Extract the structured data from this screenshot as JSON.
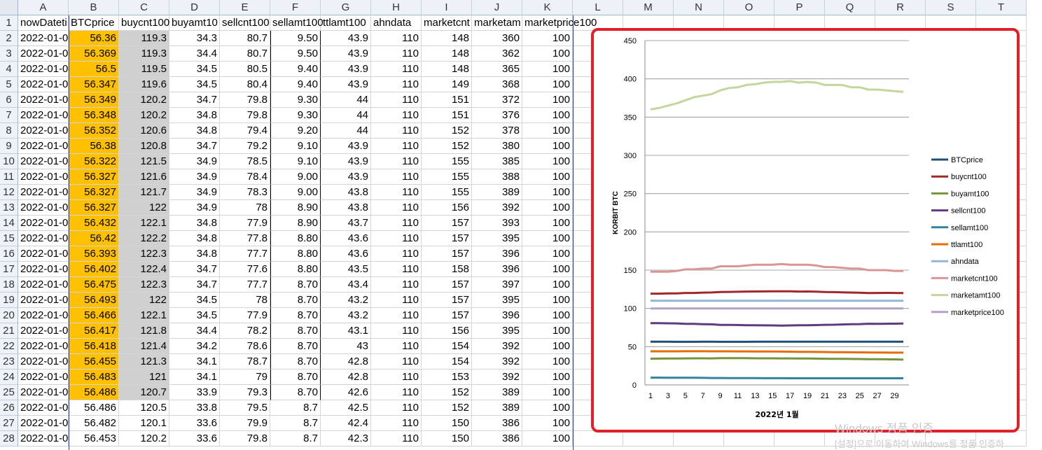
{
  "columns": [
    "A",
    "B",
    "C",
    "D",
    "E",
    "F",
    "G",
    "H",
    "I",
    "J",
    "K",
    "L",
    "M",
    "N",
    "O",
    "P",
    "Q",
    "R",
    "S",
    "T"
  ],
  "headers": [
    "nowDateti",
    "BTCprice",
    "buycnt100",
    "buyamt10",
    "sellcnt100",
    "sellamt100",
    "ttlamt100",
    "ahndata",
    "marketcnt",
    "marketam",
    "marketprice100"
  ],
  "rows": [
    [
      "2022-01-0",
      "56.36",
      "119.3",
      "34.3",
      "80.7",
      "9.50",
      "43.9",
      "110",
      "148",
      "360",
      "100"
    ],
    [
      "2022-01-0",
      "56.369",
      "119.3",
      "34.4",
      "80.7",
      "9.50",
      "43.9",
      "110",
      "148",
      "362",
      "100"
    ],
    [
      "2022-01-0",
      "56.5",
      "119.5",
      "34.5",
      "80.5",
      "9.40",
      "43.9",
      "110",
      "148",
      "365",
      "100"
    ],
    [
      "2022-01-0",
      "56.347",
      "119.6",
      "34.5",
      "80.4",
      "9.40",
      "43.9",
      "110",
      "149",
      "368",
      "100"
    ],
    [
      "2022-01-0",
      "56.349",
      "120.2",
      "34.7",
      "79.8",
      "9.30",
      "44",
      "110",
      "151",
      "372",
      "100"
    ],
    [
      "2022-01-0",
      "56.348",
      "120.2",
      "34.8",
      "79.8",
      "9.30",
      "44",
      "110",
      "151",
      "376",
      "100"
    ],
    [
      "2022-01-0",
      "56.352",
      "120.6",
      "34.8",
      "79.4",
      "9.20",
      "44",
      "110",
      "152",
      "378",
      "100"
    ],
    [
      "2022-01-0",
      "56.38",
      "120.8",
      "34.7",
      "79.2",
      "9.10",
      "43.9",
      "110",
      "152",
      "380",
      "100"
    ],
    [
      "2022-01-0",
      "56.322",
      "121.5",
      "34.9",
      "78.5",
      "9.10",
      "43.9",
      "110",
      "155",
      "385",
      "100"
    ],
    [
      "2022-01-0",
      "56.327",
      "121.6",
      "34.9",
      "78.4",
      "9.00",
      "43.9",
      "110",
      "155",
      "388",
      "100"
    ],
    [
      "2022-01-0",
      "56.327",
      "121.7",
      "34.9",
      "78.3",
      "9.00",
      "43.8",
      "110",
      "155",
      "389",
      "100"
    ],
    [
      "2022-01-0",
      "56.327",
      "122",
      "34.9",
      "78",
      "8.90",
      "43.8",
      "110",
      "156",
      "392",
      "100"
    ],
    [
      "2022-01-0",
      "56.432",
      "122.1",
      "34.8",
      "77.9",
      "8.90",
      "43.7",
      "110",
      "157",
      "393",
      "100"
    ],
    [
      "2022-01-0",
      "56.42",
      "122.2",
      "34.8",
      "77.8",
      "8.80",
      "43.6",
      "110",
      "157",
      "395",
      "100"
    ],
    [
      "2022-01-0",
      "56.393",
      "122.3",
      "34.8",
      "77.7",
      "8.80",
      "43.6",
      "110",
      "157",
      "396",
      "100"
    ],
    [
      "2022-01-0",
      "56.402",
      "122.4",
      "34.7",
      "77.6",
      "8.80",
      "43.5",
      "110",
      "158",
      "396",
      "100"
    ],
    [
      "2022-01-0",
      "56.475",
      "122.3",
      "34.7",
      "77.7",
      "8.70",
      "43.4",
      "110",
      "157",
      "397",
      "100"
    ],
    [
      "2022-01-0",
      "56.493",
      "122",
      "34.5",
      "78",
      "8.70",
      "43.2",
      "110",
      "157",
      "395",
      "100"
    ],
    [
      "2022-01-0",
      "56.466",
      "122.1",
      "34.5",
      "77.9",
      "8.70",
      "43.2",
      "110",
      "157",
      "396",
      "100"
    ],
    [
      "2022-01-0",
      "56.417",
      "121.8",
      "34.4",
      "78.2",
      "8.70",
      "43.1",
      "110",
      "156",
      "395",
      "100"
    ],
    [
      "2022-01-0",
      "56.418",
      "121.4",
      "34.2",
      "78.6",
      "8.70",
      "43",
      "110",
      "154",
      "392",
      "100"
    ],
    [
      "2022-01-0",
      "56.455",
      "121.3",
      "34.1",
      "78.7",
      "8.70",
      "42.8",
      "110",
      "154",
      "392",
      "100"
    ],
    [
      "2022-01-0",
      "56.483",
      "121",
      "34.1",
      "79",
      "8.70",
      "42.8",
      "110",
      "153",
      "392",
      "100"
    ],
    [
      "2022-01-0",
      "56.486",
      "120.7",
      "33.9",
      "79.3",
      "8.70",
      "42.6",
      "110",
      "152",
      "389",
      "100"
    ],
    [
      "2022-01-0",
      "56.486",
      "120.5",
      "33.8",
      "79.5",
      "8.7",
      "42.5",
      "110",
      "152",
      "389",
      "100"
    ],
    [
      "2022-01-0",
      "56.482",
      "120.1",
      "33.6",
      "79.9",
      "8.7",
      "42.4",
      "110",
      "150",
      "386",
      "100"
    ],
    [
      "2022-01-0",
      "56.453",
      "120.2",
      "33.6",
      "79.8",
      "8.7",
      "42.3",
      "110",
      "150",
      "386",
      "100"
    ]
  ],
  "colors": {
    "highlight_b": "#ffc000",
    "highlight_c": "#d0d0d0",
    "chart_border": "#e3202a"
  },
  "chart_data": {
    "type": "line",
    "title": "",
    "xlabel": "2022년 1월",
    "ylabel": "KORBIT BTC",
    "ylim": [
      0,
      450
    ],
    "yticks": [
      0,
      50,
      100,
      150,
      200,
      250,
      300,
      350,
      400,
      450
    ],
    "x": [
      1,
      2,
      3,
      4,
      5,
      6,
      7,
      8,
      9,
      10,
      11,
      12,
      13,
      14,
      15,
      16,
      17,
      18,
      19,
      20,
      21,
      22,
      23,
      24,
      25,
      26,
      27,
      28,
      29,
      30
    ],
    "xticks": [
      1,
      3,
      5,
      7,
      9,
      11,
      13,
      15,
      17,
      19,
      21,
      23,
      25,
      27,
      29
    ],
    "grid": true,
    "legend_position": "right",
    "series": [
      {
        "name": "BTCprice",
        "color": "#1f4e79",
        "values": [
          56.4,
          56.4,
          56.5,
          56.3,
          56.3,
          56.3,
          56.4,
          56.4,
          56.3,
          56.3,
          56.3,
          56.3,
          56.4,
          56.4,
          56.4,
          56.4,
          56.5,
          56.5,
          56.5,
          56.4,
          56.4,
          56.5,
          56.5,
          56.5,
          56.5,
          56.5,
          56.5,
          56.5,
          56.5,
          56.5
        ]
      },
      {
        "name": "buycnt100",
        "color": "#a0282c",
        "values": [
          119.3,
          119.3,
          119.5,
          119.6,
          120.2,
          120.2,
          120.6,
          120.8,
          121.5,
          121.6,
          121.7,
          122,
          122.1,
          122.2,
          122.3,
          122.4,
          122.3,
          122,
          122.1,
          121.8,
          121.4,
          121.3,
          121,
          120.7,
          120.5,
          120.1,
          120.2,
          120.3,
          120.2,
          120
        ]
      },
      {
        "name": "buyamt100",
        "color": "#77933c",
        "values": [
          34.3,
          34.4,
          34.5,
          34.5,
          34.7,
          34.8,
          34.8,
          34.7,
          34.9,
          34.9,
          34.9,
          34.9,
          34.8,
          34.8,
          34.8,
          34.7,
          34.7,
          34.5,
          34.5,
          34.4,
          34.2,
          34.1,
          34.1,
          33.9,
          33.8,
          33.6,
          33.6,
          33.5,
          33.4,
          33
        ]
      },
      {
        "name": "sellcnt100",
        "color": "#5f3a7f",
        "values": [
          80.7,
          80.7,
          80.5,
          80.4,
          79.8,
          79.8,
          79.4,
          79.2,
          78.5,
          78.4,
          78.3,
          78,
          77.9,
          77.8,
          77.7,
          77.6,
          77.7,
          78,
          77.9,
          78.2,
          78.6,
          78.7,
          79,
          79.3,
          79.5,
          79.9,
          79.8,
          79.9,
          80,
          80.3
        ]
      },
      {
        "name": "sellamt100",
        "color": "#31849b",
        "values": [
          9.5,
          9.5,
          9.4,
          9.4,
          9.3,
          9.3,
          9.2,
          9.1,
          9.1,
          9,
          9,
          8.9,
          8.9,
          8.8,
          8.8,
          8.8,
          8.7,
          8.7,
          8.7,
          8.7,
          8.7,
          8.7,
          8.7,
          8.7,
          8.7,
          8.7,
          8.7,
          8.7,
          8.7,
          8.7
        ]
      },
      {
        "name": "ttlamt100",
        "color": "#e46c0a",
        "values": [
          43.9,
          43.9,
          43.9,
          43.9,
          44,
          44,
          44,
          43.9,
          43.9,
          43.9,
          43.8,
          43.8,
          43.7,
          43.6,
          43.6,
          43.5,
          43.4,
          43.2,
          43.2,
          43.1,
          43,
          42.8,
          42.8,
          42.6,
          42.5,
          42.4,
          42.3,
          42.3,
          42.2,
          42.2
        ]
      },
      {
        "name": "ahndata",
        "color": "#95b3d7",
        "values": [
          110,
          110,
          110,
          110,
          110,
          110,
          110,
          110,
          110,
          110,
          110,
          110,
          110,
          110,
          110,
          110,
          110,
          110,
          110,
          110,
          110,
          110,
          110,
          110,
          110,
          110,
          110,
          110,
          110,
          110
        ]
      },
      {
        "name": "marketcnt100",
        "color": "#d99694",
        "values": [
          148,
          148,
          148,
          149,
          151,
          151,
          152,
          152,
          155,
          155,
          155,
          156,
          157,
          157,
          157,
          158,
          157,
          157,
          157,
          156,
          154,
          154,
          153,
          152,
          152,
          150,
          150,
          150,
          149,
          149
        ]
      },
      {
        "name": "marketamt100",
        "color": "#c3d69b",
        "values": [
          360,
          362,
          365,
          368,
          372,
          376,
          378,
          380,
          385,
          388,
          389,
          392,
          393,
          395,
          396,
          396,
          397,
          395,
          396,
          395,
          392,
          392,
          392,
          389,
          389,
          386,
          386,
          385,
          384,
          383
        ]
      },
      {
        "name": "marketprice100",
        "color": "#b3a2c7",
        "values": [
          100,
          100,
          100,
          100,
          100,
          100,
          100,
          100,
          100,
          100,
          100,
          100,
          100,
          100,
          100,
          100,
          100,
          100,
          100,
          100,
          100,
          100,
          100,
          100,
          100,
          100,
          100,
          100,
          100,
          100
        ]
      }
    ]
  },
  "watermark": {
    "line1": "Windows 정품 인증",
    "line2": "[설정]으로 이동하여 Windows를 정품 인증하"
  }
}
